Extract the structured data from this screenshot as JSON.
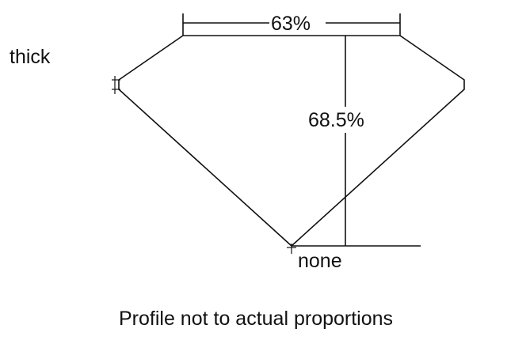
{
  "labels": {
    "girdle": "thick",
    "table": "63%",
    "depth": "68.5%",
    "culet": "none",
    "caption": "Profile not to actual proportions"
  },
  "colors": {
    "line": "#111111",
    "background": "#ffffff"
  }
}
